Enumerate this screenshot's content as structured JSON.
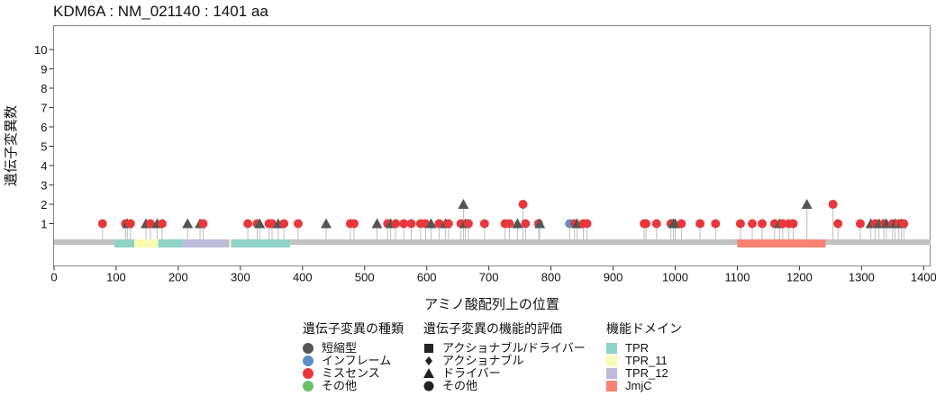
{
  "chart_data": {
    "type": "lollipop",
    "title": "KDM6A : NM_021140 : 1401 aa",
    "xlabel": "アミノ酸配列上の位置",
    "ylabel": "遺伝子変異数",
    "xlim": [
      0,
      1401
    ],
    "ylim": [
      0,
      11
    ],
    "x_ticks": [
      "0",
      "100",
      "200",
      "300",
      "400",
      "500",
      "600",
      "700",
      "800",
      "900",
      "1000",
      "1100",
      "1200",
      "1300",
      "1400"
    ],
    "y_ticks": [
      "1",
      "2",
      "3",
      "4",
      "5",
      "6",
      "7",
      "8",
      "9",
      "10"
    ],
    "protein_length": 1401,
    "domains": [
      {
        "name": "TPR",
        "start": 97,
        "end": 129
      },
      {
        "name": "TPR_11",
        "start": 129,
        "end": 168
      },
      {
        "name": "TPR",
        "start": 168,
        "end": 207
      },
      {
        "name": "TPR_12",
        "start": 207,
        "end": 282
      },
      {
        "name": "TPR_11",
        "start": 282,
        "end": 285
      },
      {
        "name": "TPR",
        "start": 285,
        "end": 380
      },
      {
        "name": "JmjC",
        "start": 1100,
        "end": 1242
      }
    ],
    "mutations": [
      {
        "pos": 78,
        "count": 1,
        "type": "missense",
        "shape": "circle"
      },
      {
        "pos": 115,
        "count": 1,
        "type": "missense",
        "shape": "circle"
      },
      {
        "pos": 118,
        "count": 1,
        "type": "truncating",
        "shape": "triangle"
      },
      {
        "pos": 123,
        "count": 1,
        "type": "missense",
        "shape": "circle"
      },
      {
        "pos": 148,
        "count": 1,
        "type": "truncating",
        "shape": "triangle"
      },
      {
        "pos": 155,
        "count": 1,
        "type": "missense",
        "shape": "circle"
      },
      {
        "pos": 166,
        "count": 1,
        "type": "truncating",
        "shape": "triangle"
      },
      {
        "pos": 174,
        "count": 1,
        "type": "missense",
        "shape": "circle"
      },
      {
        "pos": 215,
        "count": 1,
        "type": "truncating",
        "shape": "triangle"
      },
      {
        "pos": 235,
        "count": 1,
        "type": "truncating",
        "shape": "triangle"
      },
      {
        "pos": 240,
        "count": 1,
        "type": "missense",
        "shape": "circle"
      },
      {
        "pos": 312,
        "count": 1,
        "type": "missense",
        "shape": "circle"
      },
      {
        "pos": 327,
        "count": 1,
        "type": "missense",
        "shape": "circle"
      },
      {
        "pos": 331,
        "count": 1,
        "type": "truncating",
        "shape": "triangle"
      },
      {
        "pos": 346,
        "count": 1,
        "type": "missense",
        "shape": "circle"
      },
      {
        "pos": 351,
        "count": 1,
        "type": "missense",
        "shape": "circle"
      },
      {
        "pos": 361,
        "count": 1,
        "type": "truncating",
        "shape": "triangle"
      },
      {
        "pos": 370,
        "count": 1,
        "type": "missense",
        "shape": "circle"
      },
      {
        "pos": 393,
        "count": 1,
        "type": "missense",
        "shape": "circle"
      },
      {
        "pos": 438,
        "count": 1,
        "type": "truncating",
        "shape": "triangle"
      },
      {
        "pos": 477,
        "count": 1,
        "type": "missense",
        "shape": "circle"
      },
      {
        "pos": 483,
        "count": 1,
        "type": "missense",
        "shape": "circle"
      },
      {
        "pos": 520,
        "count": 1,
        "type": "truncating",
        "shape": "triangle"
      },
      {
        "pos": 537,
        "count": 1,
        "type": "missense",
        "shape": "circle"
      },
      {
        "pos": 542,
        "count": 1,
        "type": "truncating",
        "shape": "triangle"
      },
      {
        "pos": 550,
        "count": 1,
        "type": "missense",
        "shape": "circle"
      },
      {
        "pos": 563,
        "count": 1,
        "type": "missense",
        "shape": "circle"
      },
      {
        "pos": 575,
        "count": 1,
        "type": "missense",
        "shape": "circle"
      },
      {
        "pos": 590,
        "count": 1,
        "type": "missense",
        "shape": "circle"
      },
      {
        "pos": 598,
        "count": 1,
        "type": "missense",
        "shape": "circle"
      },
      {
        "pos": 607,
        "count": 1,
        "type": "truncating",
        "shape": "triangle"
      },
      {
        "pos": 620,
        "count": 1,
        "type": "missense",
        "shape": "circle"
      },
      {
        "pos": 630,
        "count": 1,
        "type": "truncating",
        "shape": "triangle"
      },
      {
        "pos": 635,
        "count": 1,
        "type": "missense",
        "shape": "circle"
      },
      {
        "pos": 655,
        "count": 1,
        "type": "missense",
        "shape": "circle"
      },
      {
        "pos": 659,
        "count": 2,
        "type": "truncating",
        "shape": "triangle"
      },
      {
        "pos": 662,
        "count": 1,
        "type": "truncating",
        "shape": "triangle"
      },
      {
        "pos": 667,
        "count": 1,
        "type": "missense",
        "shape": "circle"
      },
      {
        "pos": 693,
        "count": 1,
        "type": "missense",
        "shape": "circle"
      },
      {
        "pos": 726,
        "count": 1,
        "type": "missense",
        "shape": "circle"
      },
      {
        "pos": 733,
        "count": 1,
        "type": "missense",
        "shape": "circle"
      },
      {
        "pos": 746,
        "count": 1,
        "type": "truncating",
        "shape": "triangle"
      },
      {
        "pos": 755,
        "count": 2,
        "type": "missense",
        "shape": "circle"
      },
      {
        "pos": 759,
        "count": 1,
        "type": "missense",
        "shape": "circle"
      },
      {
        "pos": 780,
        "count": 1,
        "type": "missense",
        "shape": "circle"
      },
      {
        "pos": 782,
        "count": 1,
        "type": "truncating",
        "shape": "triangle"
      },
      {
        "pos": 830,
        "count": 1,
        "type": "inframe",
        "shape": "circle"
      },
      {
        "pos": 838,
        "count": 1,
        "type": "missense",
        "shape": "circle"
      },
      {
        "pos": 842,
        "count": 1,
        "type": "truncating",
        "shape": "triangle"
      },
      {
        "pos": 852,
        "count": 1,
        "type": "missense",
        "shape": "circle"
      },
      {
        "pos": 858,
        "count": 1,
        "type": "missense",
        "shape": "circle"
      },
      {
        "pos": 950,
        "count": 1,
        "type": "missense",
        "shape": "circle"
      },
      {
        "pos": 953,
        "count": 1,
        "type": "missense",
        "shape": "circle"
      },
      {
        "pos": 970,
        "count": 1,
        "type": "missense",
        "shape": "circle"
      },
      {
        "pos": 993,
        "count": 1,
        "type": "missense",
        "shape": "circle"
      },
      {
        "pos": 997,
        "count": 1,
        "type": "truncating",
        "shape": "triangle"
      },
      {
        "pos": 1000,
        "count": 1,
        "type": "truncating",
        "shape": "triangle"
      },
      {
        "pos": 1010,
        "count": 1,
        "type": "missense",
        "shape": "circle"
      },
      {
        "pos": 1040,
        "count": 1,
        "type": "missense",
        "shape": "circle"
      },
      {
        "pos": 1065,
        "count": 1,
        "type": "missense",
        "shape": "circle"
      },
      {
        "pos": 1105,
        "count": 1,
        "type": "missense",
        "shape": "circle"
      },
      {
        "pos": 1124,
        "count": 1,
        "type": "missense",
        "shape": "circle"
      },
      {
        "pos": 1140,
        "count": 1,
        "type": "missense",
        "shape": "circle"
      },
      {
        "pos": 1160,
        "count": 1,
        "type": "missense",
        "shape": "circle"
      },
      {
        "pos": 1168,
        "count": 1,
        "type": "truncating",
        "shape": "triangle"
      },
      {
        "pos": 1173,
        "count": 1,
        "type": "missense",
        "shape": "circle"
      },
      {
        "pos": 1183,
        "count": 1,
        "type": "missense",
        "shape": "circle"
      },
      {
        "pos": 1190,
        "count": 1,
        "type": "missense",
        "shape": "circle"
      },
      {
        "pos": 1212,
        "count": 2,
        "type": "truncating",
        "shape": "triangle"
      },
      {
        "pos": 1254,
        "count": 2,
        "type": "missense",
        "shape": "circle"
      },
      {
        "pos": 1262,
        "count": 1,
        "type": "missense",
        "shape": "circle"
      },
      {
        "pos": 1298,
        "count": 1,
        "type": "missense",
        "shape": "circle"
      },
      {
        "pos": 1315,
        "count": 1,
        "type": "truncating",
        "shape": "triangle"
      },
      {
        "pos": 1322,
        "count": 1,
        "type": "missense",
        "shape": "circle"
      },
      {
        "pos": 1328,
        "count": 1,
        "type": "truncating",
        "shape": "triangle"
      },
      {
        "pos": 1336,
        "count": 1,
        "type": "missense",
        "shape": "circle"
      },
      {
        "pos": 1340,
        "count": 1,
        "type": "truncating",
        "shape": "triangle"
      },
      {
        "pos": 1350,
        "count": 1,
        "type": "missense",
        "shape": "circle"
      },
      {
        "pos": 1354,
        "count": 1,
        "type": "truncating",
        "shape": "triangle"
      },
      {
        "pos": 1360,
        "count": 1,
        "type": "missense",
        "shape": "circle"
      },
      {
        "pos": 1364,
        "count": 1,
        "type": "truncating",
        "shape": "triangle"
      },
      {
        "pos": 1368,
        "count": 1,
        "type": "missense",
        "shape": "circle"
      }
    ],
    "colors": {
      "truncating": "#555555",
      "inframe": "#5b8fc9",
      "missense": "#e8383b",
      "other": "#6cc06c",
      "stem": "#bdbdbd",
      "backbone": "#c2c2c2",
      "TPR": "#8fd3c7",
      "TPR_11": "#fafab4",
      "TPR_12": "#bebada",
      "JmjC": "#f98273"
    },
    "legend": {
      "type": {
        "title": "遺伝子変異の種類",
        "items": [
          {
            "label": "短縮型",
            "key": "truncating"
          },
          {
            "label": "インフレーム",
            "key": "inframe"
          },
          {
            "label": "ミスセンス",
            "key": "missense"
          },
          {
            "label": "その他",
            "key": "other"
          }
        ]
      },
      "function": {
        "title": "遺伝子変異の機能的評価",
        "items": [
          {
            "label": "アクショナブル/ドライバー",
            "shape": "square"
          },
          {
            "label": "アクショナブル",
            "shape": "diamond"
          },
          {
            "label": "ドライバー",
            "shape": "triangle"
          },
          {
            "label": "その他",
            "shape": "circle"
          }
        ]
      },
      "domain": {
        "title": "機能ドメイン",
        "items": [
          {
            "label": "TPR",
            "key": "TPR"
          },
          {
            "label": "TPR_11",
            "key": "TPR_11"
          },
          {
            "label": "TPR_12",
            "key": "TPR_12"
          },
          {
            "label": "JmjC",
            "key": "JmjC"
          }
        ]
      }
    }
  }
}
